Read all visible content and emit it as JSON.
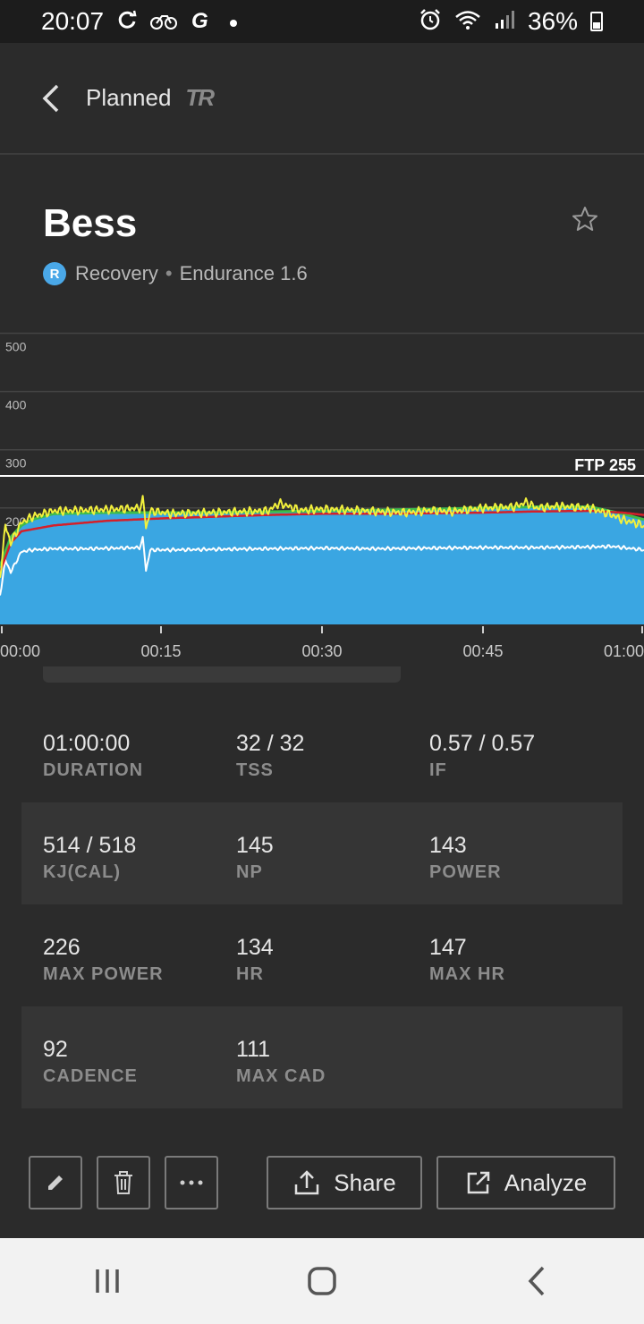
{
  "status_bar": {
    "time": "20:07",
    "battery": "36%",
    "left_icons": [
      "sync-icon",
      "cycling-icon",
      "garmin-icon",
      "dot-icon"
    ],
    "right_icons": [
      "alarm-icon",
      "wifi-icon",
      "signal-icon",
      "battery-icon"
    ]
  },
  "app_bar": {
    "back_icon": "chevron-left-icon",
    "title": "Planned",
    "logo": "TR"
  },
  "workout": {
    "name": "Bess",
    "zone_badge": "R",
    "zone": "Recovery",
    "separator": "•",
    "type": "Endurance 1.6",
    "favorite_icon": "star-outline-icon"
  },
  "chart_data": {
    "type": "area",
    "y_ticks": [
      "500",
      "400",
      "300",
      "200"
    ],
    "ylim": [
      0,
      520
    ],
    "ftp_label": "FTP 255",
    "ftp_value": 255,
    "x_ticks": [
      "00:00",
      "00:15",
      "00:30",
      "00:45",
      "01:00"
    ],
    "x_minutes": [
      0,
      15,
      30,
      45,
      60
    ],
    "grid": true,
    "colors": {
      "target_area": "#3aa6e2",
      "target_top": "#3fbb4a",
      "power": "#f2f03c",
      "power_avg": "#d4202a",
      "heart_rate": "#ffffff",
      "ftp_line": "#ffffff"
    },
    "series": [
      {
        "role": "target_power",
        "x": [
          0,
          1,
          2,
          3,
          4,
          5,
          10,
          15,
          20,
          30,
          40,
          45,
          50,
          55,
          58,
          60
        ],
        "values": [
          100,
          150,
          170,
          180,
          185,
          190,
          192,
          192,
          192,
          195,
          198,
          200,
          202,
          202,
          190,
          180
        ]
      },
      {
        "role": "power",
        "x": [
          0,
          0.5,
          1,
          2,
          3,
          5,
          8,
          11,
          13,
          13.3,
          13.6,
          14,
          16,
          20,
          25,
          26,
          28,
          30,
          33,
          35,
          38,
          40,
          42,
          45,
          48,
          49,
          50,
          52,
          55,
          57,
          58,
          60
        ],
        "values": [
          80,
          170,
          140,
          175,
          185,
          195,
          196,
          198,
          200,
          220,
          160,
          195,
          190,
          192,
          195,
          208,
          196,
          198,
          196,
          194,
          192,
          196,
          194,
          200,
          202,
          210,
          200,
          203,
          200,
          188,
          180,
          170
        ]
      },
      {
        "role": "power_avg",
        "x": [
          0,
          1,
          2,
          5,
          10,
          15,
          20,
          25,
          30,
          35,
          40,
          45,
          50,
          55,
          58,
          60
        ],
        "values": [
          90,
          140,
          160,
          170,
          178,
          182,
          185,
          188,
          190,
          190,
          191,
          192,
          194,
          195,
          192,
          188
        ]
      },
      {
        "role": "heart_rate",
        "x": [
          0,
          0.5,
          1,
          2,
          3,
          5,
          8,
          11,
          13,
          13.3,
          13.6,
          14,
          16,
          20,
          25,
          30,
          35,
          40,
          45,
          50,
          55,
          57,
          58,
          60
        ],
        "values": [
          50,
          110,
          90,
          125,
          128,
          130,
          130,
          131,
          132,
          150,
          90,
          128,
          128,
          129,
          130,
          131,
          130,
          131,
          132,
          132,
          133,
          134,
          132,
          128
        ]
      }
    ]
  },
  "stats": [
    [
      {
        "value": "01:00:00",
        "label": "DURATION"
      },
      {
        "value": "32 / 32",
        "label": "TSS"
      },
      {
        "value": "0.57 / 0.57",
        "label": "IF"
      }
    ],
    [
      {
        "value": "514 / 518",
        "label": "KJ(CAL)"
      },
      {
        "value": "145",
        "label": "NP"
      },
      {
        "value": "143",
        "label": "POWER"
      }
    ],
    [
      {
        "value": "226",
        "label": "MAX POWER"
      },
      {
        "value": "134",
        "label": "HR"
      },
      {
        "value": "147",
        "label": "MAX HR"
      }
    ],
    [
      {
        "value": "92",
        "label": "CADENCE"
      },
      {
        "value": "111",
        "label": "MAX CAD"
      },
      {
        "value": "",
        "label": ""
      }
    ]
  ],
  "actions": {
    "edit_icon": "pencil-icon",
    "delete_icon": "trash-icon",
    "more_icon": "more-horizontal-icon",
    "share_label": "Share",
    "analyze_label": "Analyze"
  },
  "nav": {
    "recents_icon": "recents-icon",
    "home_icon": "home-icon",
    "back_icon": "back-icon"
  }
}
